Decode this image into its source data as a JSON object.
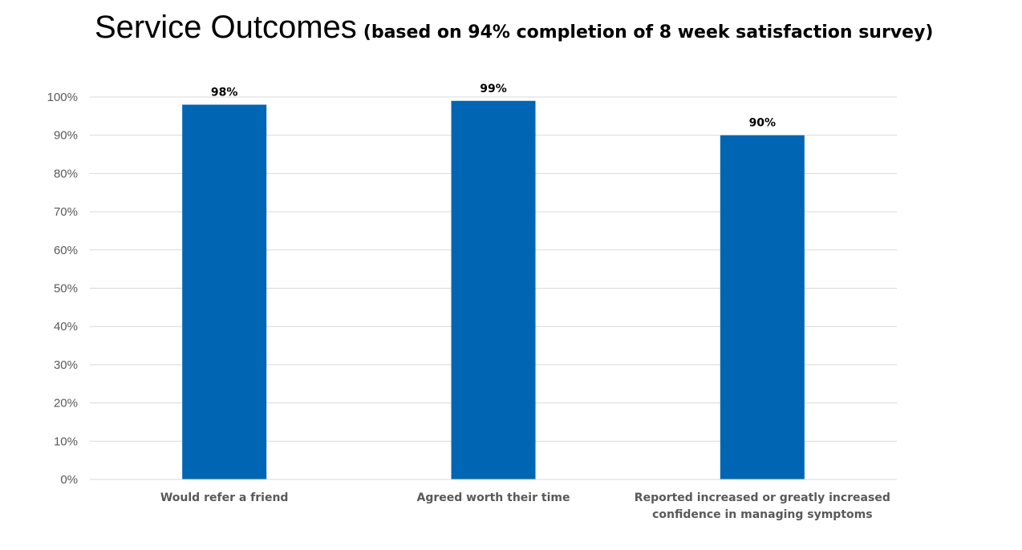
{
  "chart_data": {
    "type": "bar",
    "title": "Service Outcomes",
    "subtitle": "(based on 94% completion of 8 week satisfaction survey)",
    "categories": [
      [
        "Would refer a friend"
      ],
      [
        "Agreed worth their time"
      ],
      [
        "Reported increased or greatly increased",
        "confidence in managing symptoms"
      ]
    ],
    "values": [
      98,
      99,
      90
    ],
    "data_labels": [
      "98%",
      "99%",
      "90%"
    ],
    "ylim": [
      0,
      100
    ],
    "yticks": [
      0,
      10,
      20,
      30,
      40,
      50,
      60,
      70,
      80,
      90,
      100
    ],
    "ytick_labels": [
      "0%",
      "10%",
      "20%",
      "30%",
      "40%",
      "50%",
      "60%",
      "70%",
      "80%",
      "90%",
      "100%"
    ],
    "grid": true,
    "legend": "none",
    "bar_color": "#0066B3",
    "grid_color": "#D9D9D9"
  }
}
